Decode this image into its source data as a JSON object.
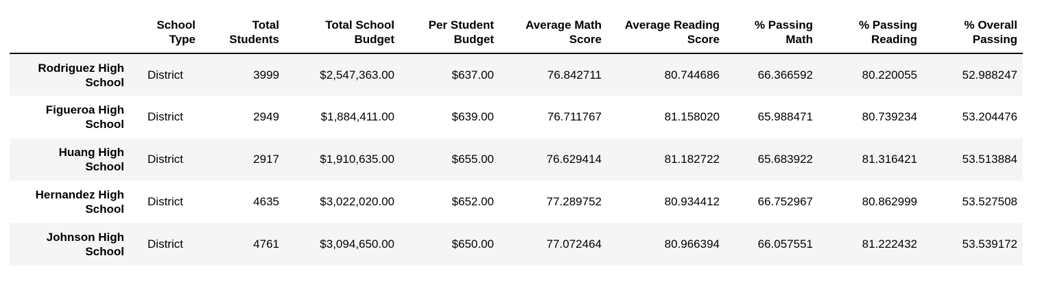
{
  "table": {
    "columns": [
      {
        "key": "index",
        "label": ""
      },
      {
        "key": "school_type",
        "label": "School\nType"
      },
      {
        "key": "total_students",
        "label": "Total\nStudents"
      },
      {
        "key": "total_budget",
        "label": "Total School\nBudget"
      },
      {
        "key": "per_student_budget",
        "label": "Per Student\nBudget"
      },
      {
        "key": "avg_math",
        "label": "Average Math\nScore"
      },
      {
        "key": "avg_reading",
        "label": "Average Reading\nScore"
      },
      {
        "key": "pct_math",
        "label": "% Passing\nMath"
      },
      {
        "key": "pct_reading",
        "label": "% Passing\nReading"
      },
      {
        "key": "pct_overall",
        "label": "% Overall\nPassing"
      }
    ],
    "rows": [
      {
        "name": "Rodriguez High\nSchool",
        "cells": [
          "District",
          "3999",
          "$2,547,363.00",
          "$637.00",
          "76.842711",
          "80.744686",
          "66.366592",
          "80.220055",
          "52.988247"
        ]
      },
      {
        "name": "Figueroa High\nSchool",
        "cells": [
          "District",
          "2949",
          "$1,884,411.00",
          "$639.00",
          "76.711767",
          "81.158020",
          "65.988471",
          "80.739234",
          "53.204476"
        ]
      },
      {
        "name": "Huang High\nSchool",
        "cells": [
          "District",
          "2917",
          "$1,910,635.00",
          "$655.00",
          "76.629414",
          "81.182722",
          "65.683922",
          "81.316421",
          "53.513884"
        ]
      },
      {
        "name": "Hernandez High\nSchool",
        "cells": [
          "District",
          "4635",
          "$3,022,020.00",
          "$652.00",
          "77.289752",
          "80.934412",
          "66.752967",
          "80.862999",
          "53.527508"
        ]
      },
      {
        "name": "Johnson High\nSchool",
        "cells": [
          "District",
          "4761",
          "$3,094,650.00",
          "$650.00",
          "77.072464",
          "80.966394",
          "66.057551",
          "81.222432",
          "53.539172"
        ]
      }
    ]
  }
}
